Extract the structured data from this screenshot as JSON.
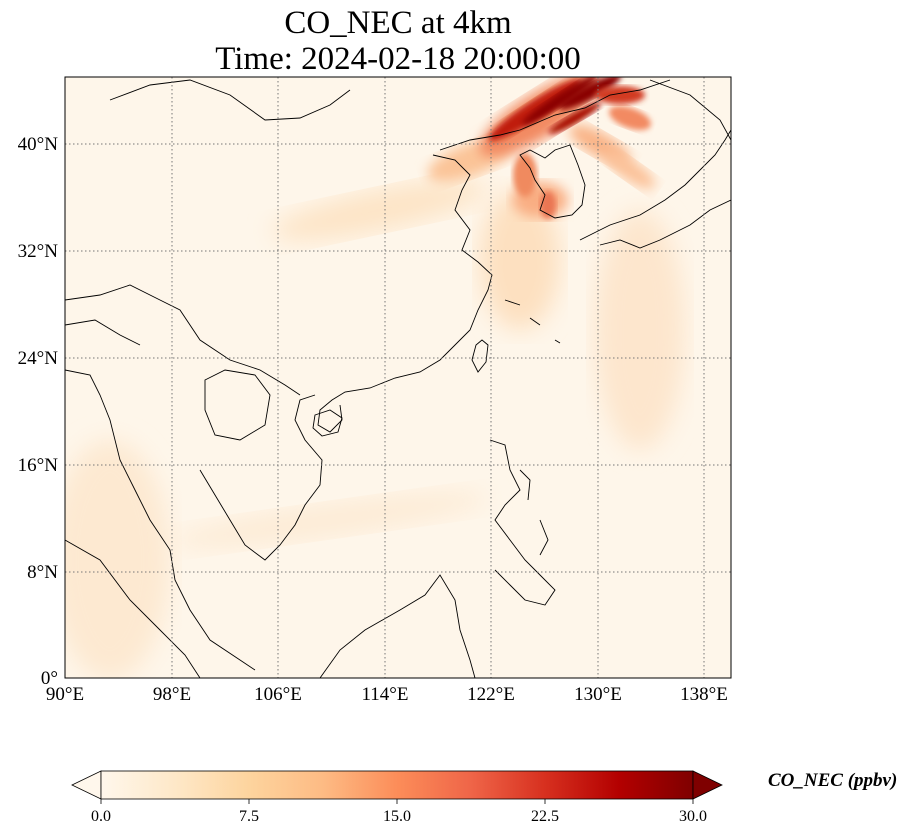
{
  "title": {
    "line1": "CO_NEC at 4km",
    "line2": "Time: 2024-02-18 20:00:00"
  },
  "map": {
    "projection": "PlateCarree",
    "lon_range": [
      90,
      140
    ],
    "lat_range": [
      0,
      45
    ],
    "gridlines": true,
    "gridline_style": "dotted",
    "x_tick_labels": [
      "90°E",
      "98°E",
      "106°E",
      "114°E",
      "122°E",
      "130°E",
      "138°E"
    ],
    "y_tick_labels": [
      "0°",
      "8°N",
      "16°N",
      "24°N",
      "32°N",
      "40°N"
    ],
    "highlights": [
      {
        "region": "Northeast China / North Korea plume",
        "level": "high (>30 ppbv)"
      },
      {
        "region": "Korean Peninsula / Sea of Japan streaks",
        "level": "moderate-high"
      },
      {
        "region": "Yellow Sea / East China plume",
        "level": "low-moderate"
      }
    ]
  },
  "colorbar": {
    "colormap": "OrRd",
    "min": 0.0,
    "max": 30.0,
    "extend": "both",
    "tick_labels": [
      "0.0",
      "7.5",
      "15.0",
      "22.5",
      "30.0"
    ],
    "label": "CO_NEC (ppbv)",
    "colors": [
      "#fff7ec",
      "#fee8c8",
      "#fdd49e",
      "#fdbb84",
      "#fc8d59",
      "#ef6548",
      "#d7301f",
      "#b30000",
      "#7f0000"
    ]
  }
}
